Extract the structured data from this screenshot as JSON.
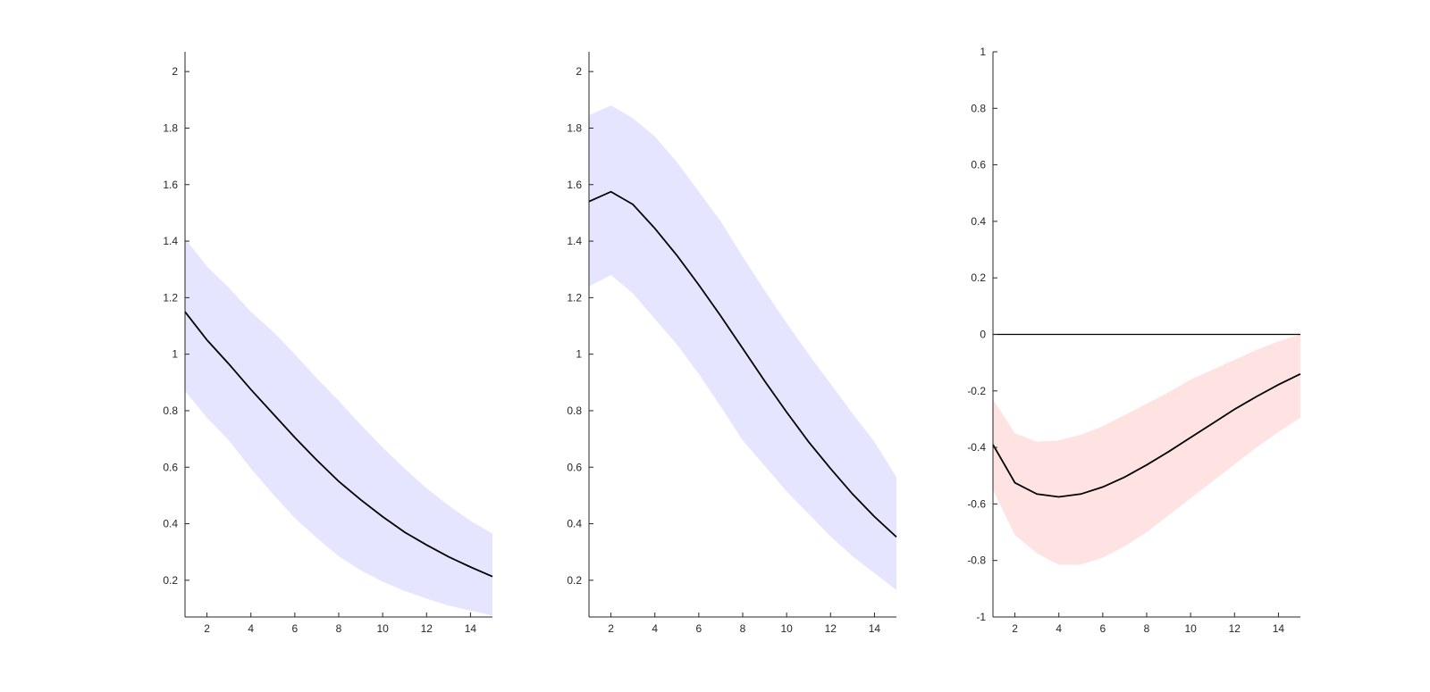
{
  "chart_data": [
    {
      "type": "line",
      "band_color": "#e5e5ff",
      "line_color": "#000000",
      "xlim": [
        1,
        15
      ],
      "ylim": [
        0.07,
        2.07
      ],
      "xticks": [
        2,
        4,
        6,
        8,
        10,
        12,
        14
      ],
      "yticks": [
        0.2,
        0.4,
        0.6,
        0.8,
        1,
        1.2,
        1.4,
        1.6,
        1.8,
        2
      ],
      "ytick_labels": [
        "0.2",
        "0.4",
        "0.6",
        "0.8",
        "1",
        "1.2",
        "1.4",
        "1.6",
        "1.8",
        "2"
      ],
      "zero_line": false,
      "x": [
        1,
        2,
        3,
        4,
        5,
        6,
        7,
        8,
        9,
        10,
        11,
        12,
        13,
        14,
        15
      ],
      "series": [
        {
          "values": [
            1.15,
            1.05,
            0.965,
            0.875,
            0.79,
            0.705,
            0.625,
            0.55,
            0.485,
            0.425,
            0.37,
            0.325,
            0.283,
            0.247,
            0.213
          ],
          "lower": [
            0.87,
            0.775,
            0.695,
            0.595,
            0.505,
            0.42,
            0.35,
            0.285,
            0.235,
            0.195,
            0.162,
            0.135,
            0.11,
            0.093,
            0.075
          ],
          "upper": [
            1.41,
            1.31,
            1.235,
            1.15,
            1.08,
            1.0,
            0.915,
            0.835,
            0.75,
            0.67,
            0.595,
            0.525,
            0.465,
            0.41,
            0.365
          ]
        }
      ]
    },
    {
      "type": "line",
      "band_color": "#e5e5ff",
      "line_color": "#000000",
      "xlim": [
        1,
        15
      ],
      "ylim": [
        0.07,
        2.07
      ],
      "xticks": [
        2,
        4,
        6,
        8,
        10,
        12,
        14
      ],
      "yticks": [
        0.2,
        0.4,
        0.6,
        0.8,
        1,
        1.2,
        1.4,
        1.6,
        1.8,
        2
      ],
      "ytick_labels": [
        "0.2",
        "0.4",
        "0.6",
        "0.8",
        "1",
        "1.2",
        "1.4",
        "1.6",
        "1.8",
        "2"
      ],
      "zero_line": false,
      "x": [
        1,
        2,
        3,
        4,
        5,
        6,
        7,
        8,
        9,
        10,
        11,
        12,
        13,
        14,
        15
      ],
      "series": [
        {
          "values": [
            1.54,
            1.575,
            1.53,
            1.445,
            1.35,
            1.245,
            1.135,
            1.02,
            0.905,
            0.795,
            0.69,
            0.595,
            0.505,
            0.425,
            0.353
          ],
          "lower": [
            1.24,
            1.28,
            1.215,
            1.125,
            1.035,
            0.93,
            0.815,
            0.695,
            0.605,
            0.515,
            0.435,
            0.355,
            0.285,
            0.225,
            0.165
          ],
          "upper": [
            1.845,
            1.88,
            1.835,
            1.77,
            1.68,
            1.575,
            1.47,
            1.345,
            1.225,
            1.11,
            1.0,
            0.895,
            0.79,
            0.69,
            0.565
          ]
        }
      ]
    },
    {
      "type": "line",
      "band_color": "#ffe3e3",
      "line_color": "#000000",
      "xlim": [
        1,
        15
      ],
      "ylim": [
        -1,
        1
      ],
      "xticks": [
        2,
        4,
        6,
        8,
        10,
        12,
        14
      ],
      "yticks": [
        -1,
        -0.8,
        -0.6,
        -0.4,
        -0.2,
        0,
        0.2,
        0.4,
        0.6,
        0.8,
        1
      ],
      "ytick_labels": [
        "-1",
        "-0.8",
        "-0.6",
        "-0.4",
        "-0.2",
        "0",
        "0.2",
        "0.4",
        "0.6",
        "0.8",
        "1"
      ],
      "zero_line": true,
      "x": [
        1,
        2,
        3,
        4,
        5,
        6,
        7,
        8,
        9,
        10,
        11,
        12,
        13,
        14,
        15
      ],
      "series": [
        {
          "values": [
            -0.39,
            -0.525,
            -0.565,
            -0.575,
            -0.565,
            -0.54,
            -0.505,
            -0.462,
            -0.415,
            -0.365,
            -0.315,
            -0.265,
            -0.22,
            -0.178,
            -0.14
          ],
          "lower": [
            -0.55,
            -0.71,
            -0.775,
            -0.815,
            -0.815,
            -0.79,
            -0.75,
            -0.7,
            -0.64,
            -0.58,
            -0.52,
            -0.46,
            -0.4,
            -0.345,
            -0.295
          ],
          "upper": [
            -0.23,
            -0.35,
            -0.38,
            -0.375,
            -0.355,
            -0.325,
            -0.285,
            -0.245,
            -0.205,
            -0.16,
            -0.125,
            -0.09,
            -0.055,
            -0.025,
            0.0
          ]
        }
      ]
    }
  ]
}
